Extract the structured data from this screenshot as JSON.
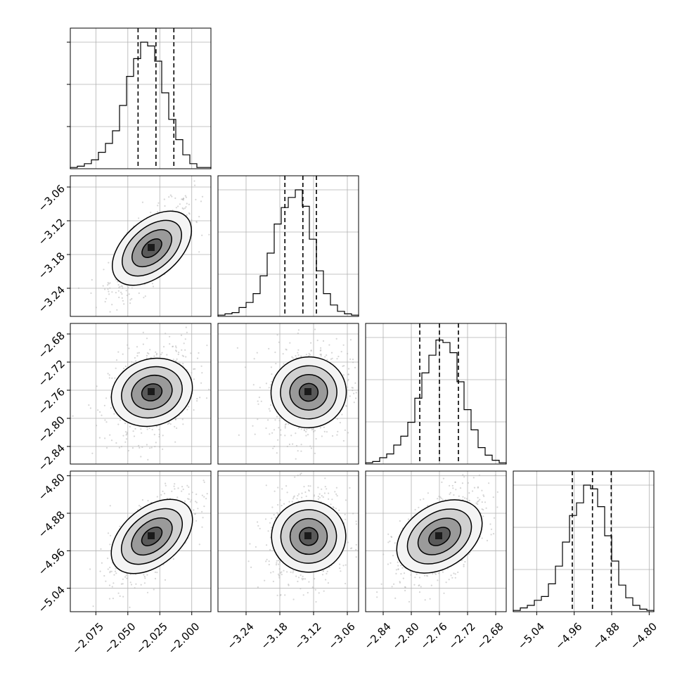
{
  "chart_data": {
    "type": "corner",
    "parameters": 4,
    "grid": true,
    "colors": {
      "contour": "#000000",
      "quantile_line": "#000000",
      "samples": "#b5b5b5",
      "grid": "#b0b0b0"
    },
    "x_ticks": [
      [
        "−2.075",
        "−2.050",
        "−2.025",
        "−2.000"
      ],
      [
        "−3.24",
        "−3.18",
        "−3.12",
        "−3.06"
      ],
      [
        "−2.84",
        "−2.80",
        "−2.76",
        "−2.72",
        "−2.68"
      ],
      [
        "−5.04",
        "−4.96",
        "−4.88",
        "−4.80"
      ]
    ],
    "y_ticks": [
      null,
      [
        "−3.06",
        "−3.12",
        "−3.18",
        "−3.24"
      ],
      [
        "−2.68",
        "−2.72",
        "−2.76",
        "−2.80",
        "−2.84"
      ],
      [
        "−4.80",
        "−4.88",
        "−4.96",
        "−5.04"
      ]
    ],
    "ranges": [
      [
        -2.095,
        -1.985
      ],
      [
        -3.29,
        -3.04
      ],
      [
        -2.865,
        -2.665
      ],
      [
        -5.09,
        -4.79
      ]
    ],
    "x_tick_values": [
      [
        -2.075,
        -2.05,
        -2.025,
        -2.0
      ],
      [
        -3.24,
        -3.18,
        -3.12,
        -3.06
      ],
      [
        -2.84,
        -2.8,
        -2.76,
        -2.72,
        -2.68
      ],
      [
        -5.04,
        -4.96,
        -4.88,
        -4.8
      ]
    ],
    "y_tick_values": [
      null,
      [
        -3.06,
        -3.12,
        -3.18,
        -3.24
      ],
      [
        -2.68,
        -2.72,
        -2.76,
        -2.8,
        -2.84
      ],
      [
        -4.8,
        -4.88,
        -4.96,
        -5.04
      ]
    ],
    "quantiles": [
      [
        -2.042,
        -2.028,
        -2.014
      ],
      [
        -3.171,
        -3.139,
        -3.115
      ],
      [
        -2.788,
        -2.76,
        -2.733
      ],
      [
        -4.964,
        -4.921,
        -4.881
      ]
    ],
    "histograms": [
      [
        0.01,
        0.02,
        0.04,
        0.07,
        0.13,
        0.2,
        0.3,
        0.5,
        0.73,
        0.87,
        1.0,
        0.97,
        0.85,
        0.6,
        0.39,
        0.23,
        0.11,
        0.04,
        0.01,
        0.01
      ],
      [
        0.01,
        0.02,
        0.03,
        0.07,
        0.11,
        0.18,
        0.32,
        0.5,
        0.73,
        0.86,
        0.94,
        1.0,
        0.87,
        0.61,
        0.36,
        0.18,
        0.09,
        0.04,
        0.02,
        0.01
      ],
      [
        0.01,
        0.02,
        0.05,
        0.08,
        0.15,
        0.22,
        0.33,
        0.52,
        0.72,
        0.86,
        0.98,
        0.96,
        0.88,
        0.65,
        0.43,
        0.27,
        0.13,
        0.07,
        0.03,
        0.01
      ],
      [
        0.01,
        0.03,
        0.05,
        0.09,
        0.12,
        0.22,
        0.36,
        0.55,
        0.76,
        0.86,
        1.0,
        0.97,
        0.83,
        0.6,
        0.4,
        0.21,
        0.11,
        0.05,
        0.02,
        0.01
      ]
    ],
    "correlations": [
      {
        "row": 1,
        "col": 0,
        "rho": 0.72
      },
      {
        "row": 2,
        "col": 0,
        "rho": 0.3
      },
      {
        "row": 2,
        "col": 1,
        "rho": 0.08
      },
      {
        "row": 3,
        "col": 0,
        "rho": 0.68
      },
      {
        "row": 3,
        "col": 1,
        "rho": 0.05
      },
      {
        "row": 3,
        "col": 2,
        "rho": 0.55
      }
    ]
  }
}
